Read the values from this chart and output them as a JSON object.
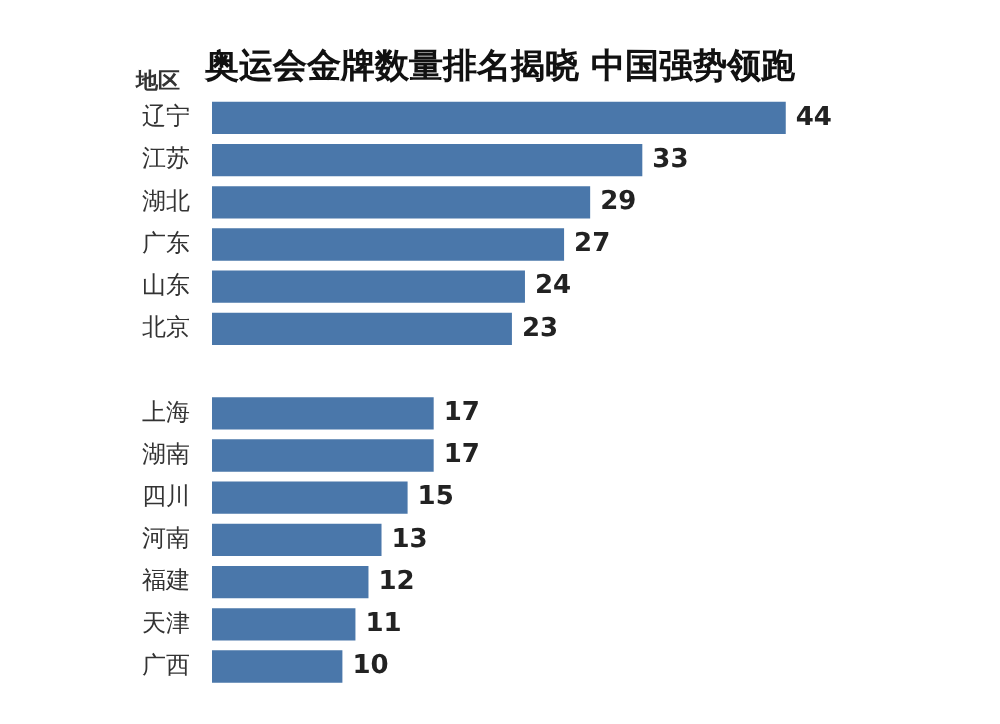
{
  "chart_data": {
    "type": "bar",
    "orientation": "horizontal",
    "title": "奥运会金牌数量排名揭晓 中国强势领跑",
    "ylabel": "地区",
    "categories": [
      "辽宁",
      "江苏",
      "湖北",
      "广东",
      "山东",
      "北京",
      null,
      "上海",
      "湖南",
      "四川",
      "河南",
      "福建",
      "天津",
      "广西"
    ],
    "values": [
      44,
      33,
      29,
      27,
      24,
      23,
      null,
      17,
      17,
      15,
      13,
      12,
      11,
      10
    ],
    "color": "#4a77aa",
    "data_labels": true,
    "legend": false
  }
}
